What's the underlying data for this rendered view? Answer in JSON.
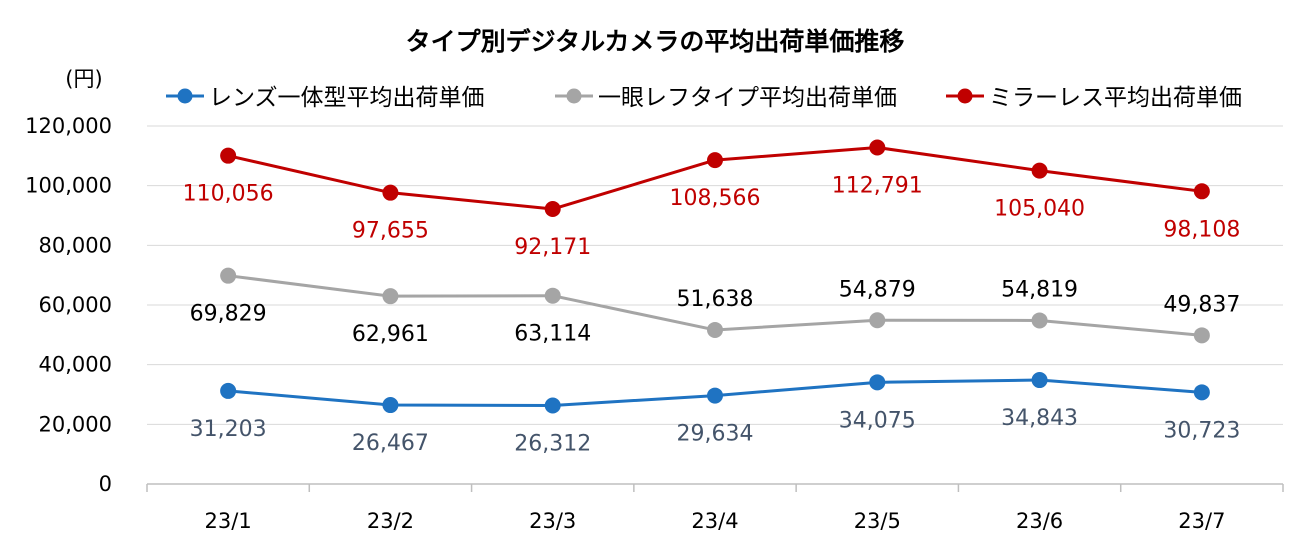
{
  "chart_data": {
    "type": "line",
    "title": "タイプ別デジタルカメラの平均出荷単価推移",
    "y_unit": "(円)",
    "categories": [
      "23/1",
      "23/2",
      "23/3",
      "23/4",
      "23/5",
      "23/6",
      "23/7"
    ],
    "ylim": [
      0,
      120000
    ],
    "yticks": [
      "0",
      "20,000",
      "40,000",
      "60,000",
      "80,000",
      "100,000",
      "120,000"
    ],
    "ytick_values": [
      0,
      20000,
      40000,
      60000,
      80000,
      100000,
      120000
    ],
    "grid": true,
    "legend_position": "top",
    "series": [
      {
        "name": "レンズ一体型平均出荷単価",
        "color": "#1f73c2",
        "label_color": "#44546a",
        "label_position": "below",
        "values": [
          31203,
          26467,
          26312,
          29634,
          34075,
          34843,
          30723
        ],
        "labels": [
          "31,203",
          "26,467",
          "26,312",
          "29,634",
          "34,075",
          "34,843",
          "30,723"
        ]
      },
      {
        "name": "一眼レフタイプ平均出荷単価",
        "color": "#a5a5a5",
        "label_color": "#000000",
        "label_position": "mixed",
        "values": [
          69829,
          62961,
          63114,
          51638,
          54879,
          54819,
          49837
        ],
        "labels": [
          "69,829",
          "62,961",
          "63,114",
          "51,638",
          "54,879",
          "54,819",
          "49,837"
        ]
      },
      {
        "name": "ミラーレス平均出荷単価",
        "color": "#c00000",
        "label_color": "#c00000",
        "label_position": "below",
        "values": [
          110056,
          97655,
          92171,
          108566,
          112791,
          105040,
          98108
        ],
        "labels": [
          "110,056",
          "97,655",
          "92,171",
          "108,566",
          "112,791",
          "105,040",
          "98,108"
        ]
      }
    ]
  }
}
